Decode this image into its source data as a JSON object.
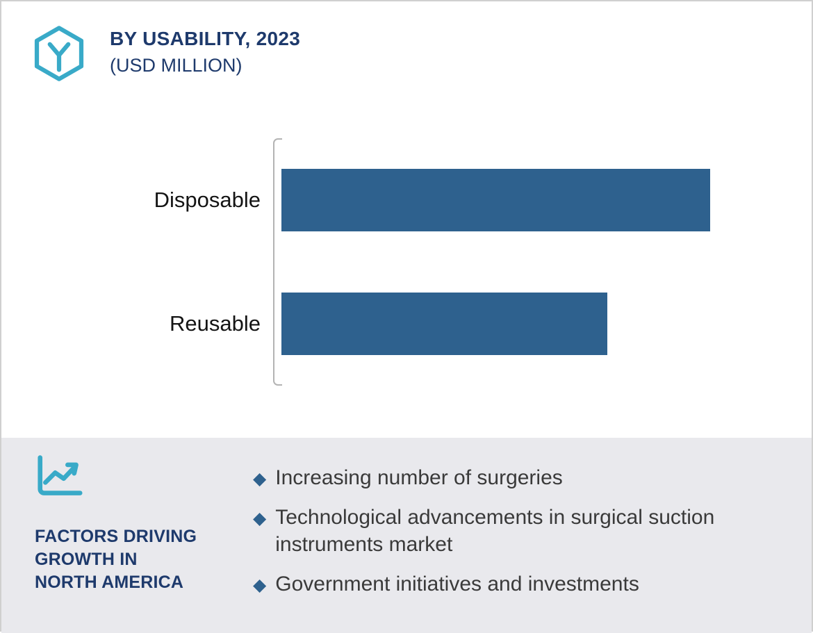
{
  "header": {
    "title": "BY USABILITY, 2023",
    "subtitle": "(USD MILLION)"
  },
  "chart_data": {
    "type": "bar",
    "orientation": "horizontal",
    "title": "BY USABILITY, 2023 (USD MILLION)",
    "unit": "USD Million",
    "categories": [
      "Disposable",
      "Reusable"
    ],
    "values_relative_percent_of_max": [
      100,
      76
    ],
    "value_labels_shown": false,
    "axis_ticks_shown": false,
    "grid": false,
    "legend": false,
    "bar_color": "#2E618E"
  },
  "footer": {
    "heading": "FACTORS DRIVING GROWTH IN NORTH AMERICA",
    "heading_lines": [
      "FACTORS DRIVING",
      "GROWTH IN",
      "NORTH AMERICA"
    ],
    "bullets": [
      "Increasing number of surgeries",
      "Technological advancements in surgical suction instruments market",
      "Government initiatives and investments"
    ]
  },
  "icons": {
    "logo": "hexagon-y-icon",
    "factors": "line-chart-icon",
    "bullet": "diamond-bullet"
  },
  "colors": {
    "navy": "#1E3A6C",
    "teal": "#39AAC8",
    "bar_blue": "#2E618E",
    "bullet_diamond": "#2E618E",
    "panel_bg": "#E9E9ED",
    "body_text": "#3A3A3A",
    "axis_gray": "#B3B3B3"
  }
}
